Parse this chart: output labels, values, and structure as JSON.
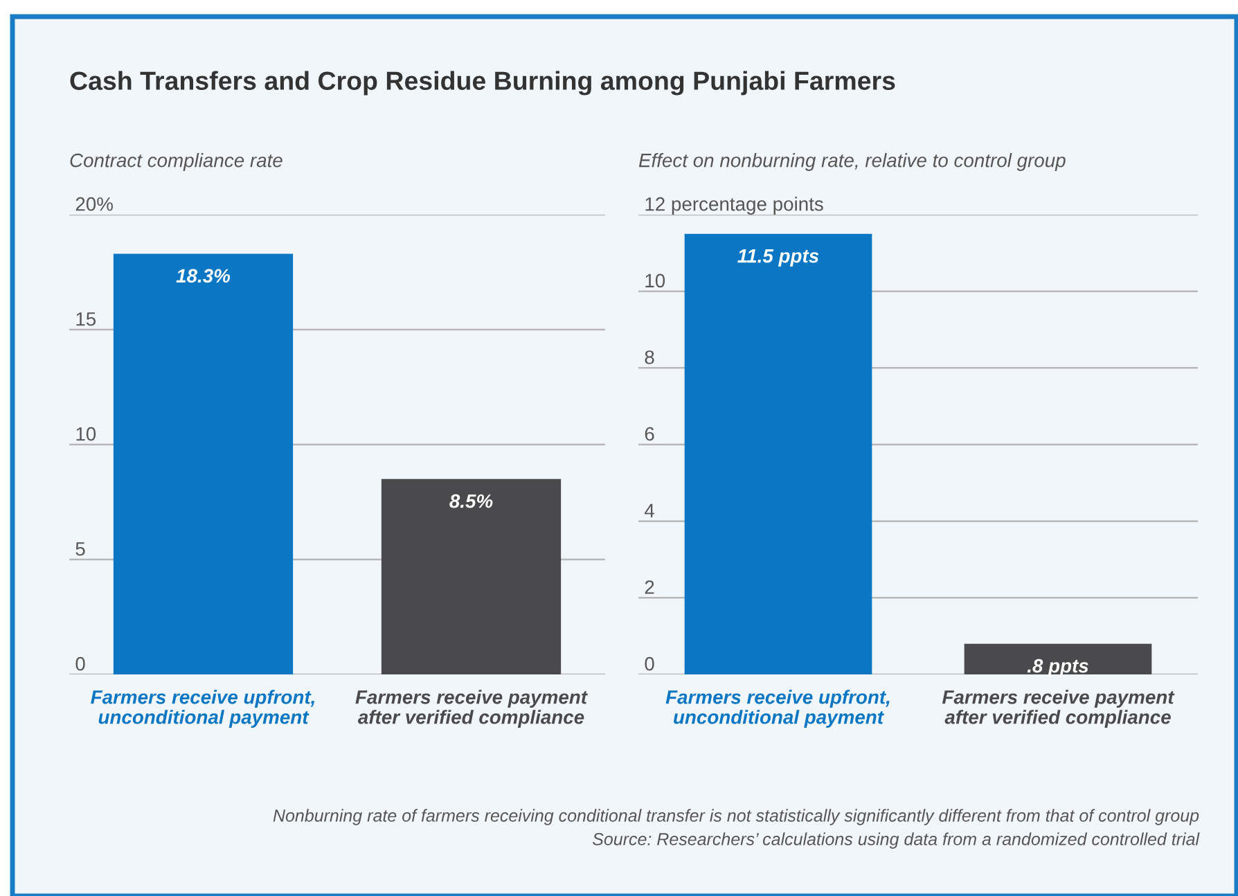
{
  "chart_data": [
    {
      "type": "bar",
      "title": "Cash Transfers and Crop Residue Burning among Punjabi Farmers",
      "ylabel": "Contract compliance rate",
      "categories": [
        "Farmers receive upfront,\nunconditional payment",
        "Farmers receive payment\nafter verified compliance"
      ],
      "values": [
        18.3,
        8.5
      ],
      "colors": [
        "#0b76c3",
        "#4a4a4c"
      ],
      "value_labels": [
        "18.3%",
        "8.5%"
      ],
      "ylim": [
        0,
        20
      ],
      "yticks": [
        0,
        5,
        10,
        15,
        {
          "value": 20,
          "label": "20%"
        }
      ],
      "grid": "y"
    },
    {
      "type": "bar",
      "ylabel": "Effect on nonburning rate, relative to control group",
      "categories": [
        "Farmers receive upfront,\nunconditional payment",
        "Farmers receive payment\nafter verified compliance"
      ],
      "values": [
        11.5,
        0.8
      ],
      "colors": [
        "#0b76c3",
        "#4a4a4c"
      ],
      "value_labels": [
        "11.5 ppts",
        ".8 ppts"
      ],
      "ylim": [
        0,
        12
      ],
      "yticks": [
        0,
        2,
        4,
        6,
        8,
        10,
        {
          "value": 12,
          "label": "12 percentage points"
        }
      ],
      "grid": "y",
      "annotations": [
        "Nonburning rate of farmers receiving conditional transfer is not statistically significantly different from that of control group",
        "Source: Researchers’ calculations using data from a randomized controlled trial"
      ]
    }
  ]
}
